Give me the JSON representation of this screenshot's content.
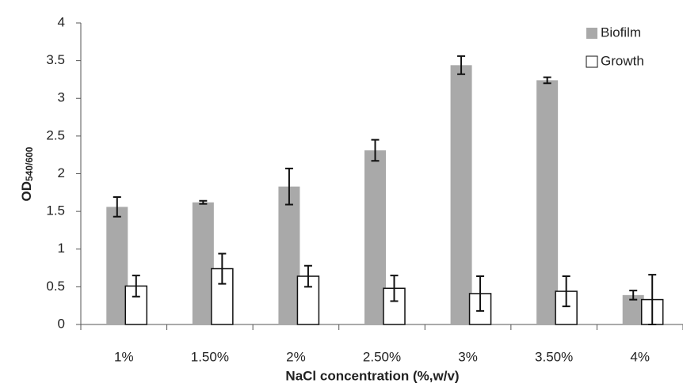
{
  "chart_data": {
    "type": "bar",
    "y_label": "OD",
    "y_label_sub": "540/600",
    "x_label": "NaCl concentration (%,w/v)",
    "categories": [
      "1%",
      "1.50%",
      "2%",
      "2.50%",
      "3%",
      "3.50%",
      "4%"
    ],
    "series": [
      {
        "name": "Biofilm",
        "color": "#a9a9a9",
        "values": [
          1.56,
          1.62,
          1.83,
          2.31,
          3.44,
          3.24,
          0.39
        ],
        "errors": [
          0.13,
          0.02,
          0.24,
          0.14,
          0.12,
          0.04,
          0.06
        ]
      },
      {
        "name": "Growth",
        "color": "#ffffff",
        "values": [
          0.51,
          0.74,
          0.64,
          0.48,
          0.41,
          0.44,
          0.33
        ],
        "errors": [
          0.14,
          0.2,
          0.14,
          0.17,
          0.23,
          0.2,
          0.33
        ]
      }
    ],
    "ylim": [
      0,
      4
    ],
    "yticks": [
      0,
      0.5,
      1,
      1.5,
      2,
      2.5,
      3,
      3.5,
      4
    ],
    "grid": false,
    "legend": "top-right"
  }
}
